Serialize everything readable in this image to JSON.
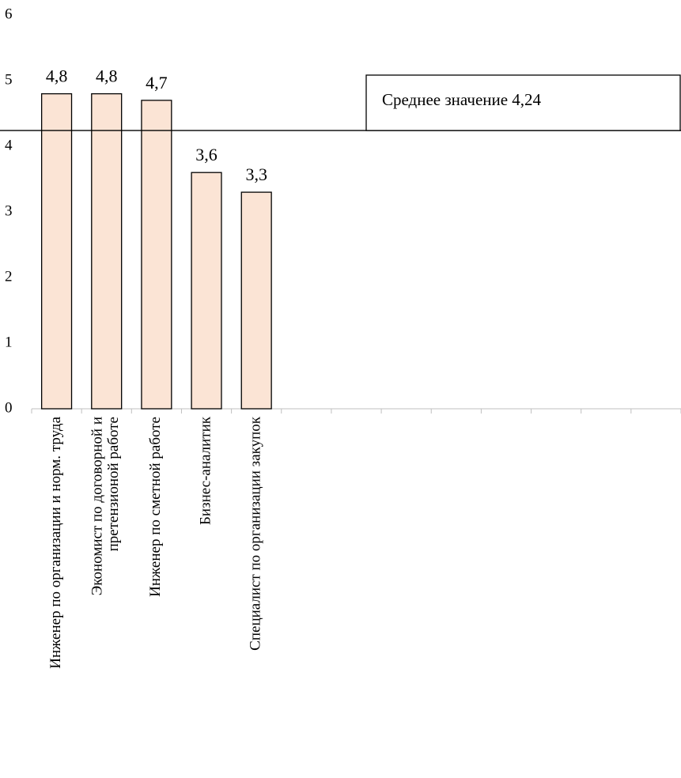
{
  "chart_data": {
    "type": "bar",
    "categories": [
      "Инженер по организации и норм. труда",
      "Экономист по договорной и\nпретензионой работе",
      "Инженер по сметной работе",
      "Бизнес-аналитик",
      "Специалист по организации закупок",
      null,
      null,
      null,
      null,
      null,
      null,
      null,
      null
    ],
    "values": [
      4.8,
      4.8,
      4.7,
      3.6,
      3.3,
      null,
      null,
      null,
      null,
      null,
      null,
      null,
      null
    ],
    "value_labels": [
      "4,8",
      "4,8",
      "4,7",
      "3,6",
      "3,3",
      null,
      null,
      null,
      null,
      null,
      null,
      null,
      null
    ],
    "color": "#fbe4d5",
    "ylim": [
      0,
      6
    ],
    "yticks": [
      0,
      1,
      2,
      3,
      4,
      5,
      6
    ],
    "grid": false,
    "mean_line": {
      "value": 4.24,
      "label": "Среднее значение 4,24"
    }
  }
}
